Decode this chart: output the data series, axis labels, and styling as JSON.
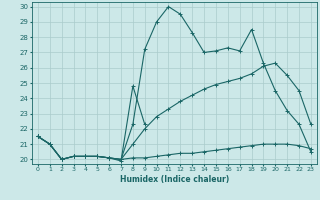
{
  "xlabel": "Humidex (Indice chaleur)",
  "ylabel": "",
  "background_color": "#cce8e8",
  "grid_color": "#aacccc",
  "line_color": "#1a6666",
  "xlim": [
    -0.5,
    23.5
  ],
  "ylim": [
    19.7,
    30.3
  ],
  "xticks": [
    0,
    1,
    2,
    3,
    4,
    5,
    6,
    7,
    8,
    9,
    10,
    11,
    12,
    13,
    14,
    15,
    16,
    17,
    18,
    19,
    20,
    21,
    22,
    23
  ],
  "yticks": [
    20,
    21,
    22,
    23,
    24,
    25,
    26,
    27,
    28,
    29,
    30
  ],
  "line_main": [
    21.5,
    21.0,
    20.0,
    20.2,
    20.2,
    20.2,
    20.1,
    20.0,
    22.3,
    27.2,
    29.0,
    30.0,
    29.5,
    28.3,
    27.0,
    27.1,
    27.3,
    27.1,
    28.5,
    26.3,
    24.5,
    23.2,
    22.3,
    20.5
  ],
  "line_spike": [
    21.5,
    21.0,
    20.0,
    20.2,
    20.2,
    20.2,
    20.1,
    19.9,
    24.8,
    22.3,
    null,
    null,
    null,
    null,
    null,
    null,
    null,
    null,
    null,
    null,
    null,
    null,
    null,
    null
  ],
  "line_flat": [
    21.5,
    21.0,
    20.0,
    20.2,
    20.2,
    20.2,
    20.1,
    20.0,
    20.1,
    20.1,
    20.2,
    20.3,
    20.4,
    20.4,
    20.5,
    20.6,
    20.7,
    20.8,
    20.9,
    21.0,
    21.0,
    21.0,
    20.9,
    20.7
  ],
  "line_grad": [
    21.5,
    21.0,
    20.0,
    20.2,
    20.2,
    20.2,
    20.1,
    20.0,
    21.0,
    22.0,
    22.8,
    23.3,
    23.8,
    24.2,
    24.6,
    24.9,
    25.1,
    25.3,
    25.6,
    26.1,
    26.3,
    25.5,
    24.5,
    22.3
  ]
}
